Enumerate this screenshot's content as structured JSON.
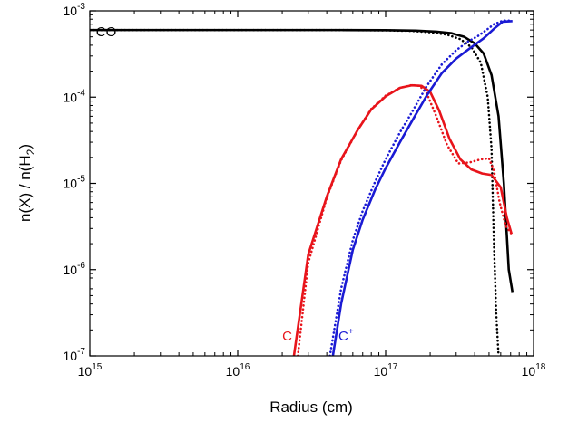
{
  "chart_data": {
    "type": "line",
    "title": "",
    "xlabel": "Radius (cm)",
    "ylabel_main": "n(X) / n(H",
    "ylabel_sub": "2",
    "ylabel_close": ")",
    "x_scale": "log",
    "y_scale": "log",
    "xlim": [
      1000000000000000.0,
      1e+18
    ],
    "ylim": [
      1e-07,
      0.001
    ],
    "grid": false,
    "legend": "none",
    "x_ticks": [
      {
        "value": 1000000000000000.0,
        "base": "10",
        "exp": "15"
      },
      {
        "value": 1e+16,
        "base": "10",
        "exp": "16"
      },
      {
        "value": 1e+17,
        "base": "10",
        "exp": "17"
      },
      {
        "value": 1e+18,
        "base": "10",
        "exp": "18"
      }
    ],
    "y_ticks": [
      {
        "value": 1e-07,
        "base": "10",
        "exp": "-7"
      },
      {
        "value": 1e-06,
        "base": "10",
        "exp": "-6"
      },
      {
        "value": 1e-05,
        "base": "10",
        "exp": "-5"
      },
      {
        "value": 0.0001,
        "base": "10",
        "exp": "-4"
      },
      {
        "value": 0.001,
        "base": "10",
        "exp": "-3"
      }
    ],
    "labels": [
      {
        "text": "CO",
        "sup": "",
        "color": "#000000",
        "x": 1100000000000000.0,
        "y": 0.00044
      },
      {
        "text": "C",
        "sup": "",
        "color": "#e8141b",
        "x": 2e+16,
        "y": 1.3e-07
      },
      {
        "text": "C",
        "sup": "+",
        "color": "#1a1ad4",
        "x": 4.8e+16,
        "y": 1.3e-07
      }
    ],
    "series": [
      {
        "color": "#000000",
        "style": "solid",
        "x": [
          1000000000000000.0,
          1e+16,
          5e+16,
          1e+17,
          1.6e+17,
          2.2e+17,
          2.8e+17,
          3.4e+17,
          4e+17,
          4.6e+17,
          5.2e+17,
          5.8e+17,
          6.3e+17,
          6.8e+17,
          7.2e+17
        ],
        "y": [
          0.0006,
          0.0006,
          0.0006,
          0.000598,
          0.00059,
          0.000575,
          0.00055,
          0.0005,
          0.00042,
          0.00032,
          0.00018,
          6e-05,
          1e-05,
          1e-06,
          5.5e-07
        ]
      },
      {
        "color": "#000000",
        "style": "dotted",
        "x": [
          1000000000000000.0,
          1e+16,
          5e+16,
          1e+17,
          1.5e+17,
          2e+17,
          2.6e+17,
          3.2e+17,
          3.8e+17,
          4.4e+17,
          4.9e+17,
          5.2e+17,
          5.4e+17,
          5.6e+17,
          5.8e+17
        ],
        "y": [
          0.0006,
          0.0006,
          0.0006,
          0.000595,
          0.000585,
          0.000565,
          0.00053,
          0.00047,
          0.00038,
          0.00025,
          0.0001,
          2.5e-05,
          2e-06,
          3e-07,
          1e-07
        ]
      },
      {
        "color": "#e8141b",
        "style": "solid",
        "x": [
          2.4e+16,
          3e+16,
          4e+16,
          5e+16,
          6.5e+16,
          8e+16,
          1e+17,
          1.25e+17,
          1.5e+17,
          1.75e+17,
          2e+17,
          2.3e+17,
          2.7e+17,
          3.2e+17,
          3.8e+17,
          4.5e+17,
          5.2e+17,
          6e+17,
          6.6e+17,
          7.1e+17
        ],
        "y": [
          1e-07,
          1.5e-06,
          7e-06,
          1.9e-05,
          4.2e-05,
          7.2e-05,
          0.000102,
          0.000128,
          0.000137,
          0.000135,
          0.000115,
          7e-05,
          3.3e-05,
          1.9e-05,
          1.45e-05,
          1.3e-05,
          1.25e-05,
          9e-06,
          4e-06,
          2.6e-06
        ]
      },
      {
        "color": "#e8141b",
        "style": "dotted",
        "x": [
          2.55e+16,
          3e+16,
          4e+16,
          5e+16,
          6.5e+16,
          8e+16,
          1e+17,
          1.25e+17,
          1.5e+17,
          1.7e+17,
          1.9e+17,
          2.2e+17,
          2.6e+17,
          3.1e+17,
          3.7e+17,
          4.4e+17,
          5e+17,
          5.4e+17,
          5.9e+17,
          6.5e+17,
          7.1e+17
        ],
        "y": [
          1e-07,
          1.2e-06,
          6.8e-06,
          1.85e-05,
          4.2e-05,
          7.3e-05,
          0.000104,
          0.000128,
          0.000138,
          0.000135,
          0.00011,
          6e-05,
          2.8e-05,
          1.7e-05,
          1.75e-05,
          1.9e-05,
          1.95e-05,
          1.4e-05,
          6e-06,
          3.2e-06,
          2.6e-06
        ]
      },
      {
        "color": "#1a1ad4",
        "style": "solid",
        "x": [
          4.4e+16,
          5e+16,
          6e+16,
          7e+16,
          8.5e+16,
          1e+17,
          1.25e+17,
          1.5e+17,
          1.9e+17,
          2.4e+17,
          3e+17,
          3.8e+17,
          4.6e+17,
          5.4e+17,
          6.2e+17,
          7.2e+17
        ],
        "y": [
          1e-07,
          4e-07,
          1.7e-06,
          3.8e-06,
          8.5e-06,
          1.5e-05,
          3e-05,
          5.2e-05,
          0.000105,
          0.00019,
          0.00028,
          0.00038,
          0.00048,
          0.00062,
          0.00075,
          0.00076
        ]
      },
      {
        "color": "#1a1ad4",
        "style": "dotted",
        "x": [
          4.2e+16,
          5e+16,
          6e+16,
          7e+16,
          8.5e+16,
          1e+17,
          1.25e+17,
          1.5e+17,
          1.9e+17,
          2.4e+17,
          3e+17,
          3.6e+17,
          4.2e+17,
          4.8e+17,
          5.4e+17,
          6.2e+17,
          7.2e+17
        ],
        "y": [
          1e-07,
          6e-07,
          2.2e-06,
          4.8e-06,
          1.05e-05,
          1.9e-05,
          3.9e-05,
          6.6e-05,
          0.000135,
          0.00024,
          0.00035,
          0.00044,
          0.00051,
          0.0006,
          0.0007,
          0.00077,
          0.00077
        ]
      }
    ]
  }
}
